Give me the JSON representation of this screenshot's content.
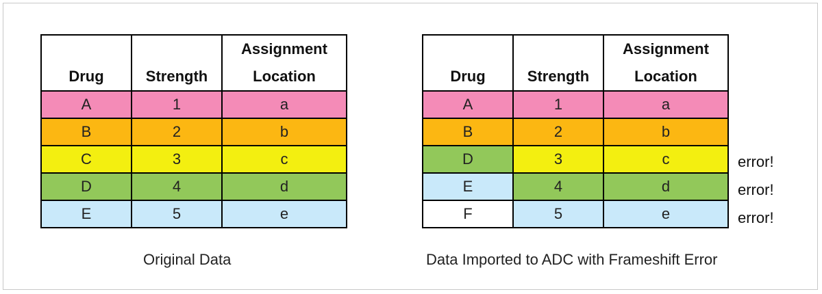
{
  "colors": {
    "A": "#f48bb7",
    "B": "#fcb712",
    "C": "#f3ef10",
    "D": "#92c85a",
    "E": "#c9e9fa",
    "F": "#ffffff"
  },
  "headers": {
    "drug": "Drug",
    "strength": "Strength",
    "location_line1": "Assignment",
    "location_line2": "Location"
  },
  "original": {
    "caption": "Original Data",
    "rows": [
      {
        "drug": "A",
        "strength": "1",
        "location": "a",
        "drug_color": "A",
        "rest_color": "A"
      },
      {
        "drug": "B",
        "strength": "2",
        "location": "b",
        "drug_color": "B",
        "rest_color": "B"
      },
      {
        "drug": "C",
        "strength": "3",
        "location": "c",
        "drug_color": "C",
        "rest_color": "C"
      },
      {
        "drug": "D",
        "strength": "4",
        "location": "d",
        "drug_color": "D",
        "rest_color": "D"
      },
      {
        "drug": "E",
        "strength": "5",
        "location": "e",
        "drug_color": "E",
        "rest_color": "E"
      }
    ]
  },
  "imported": {
    "caption": "Data Imported to ADC with Frameshift Error",
    "rows": [
      {
        "drug": "A",
        "strength": "1",
        "location": "a",
        "drug_color": "A",
        "rest_color": "A",
        "flag": ""
      },
      {
        "drug": "B",
        "strength": "2",
        "location": "b",
        "drug_color": "B",
        "rest_color": "B",
        "flag": ""
      },
      {
        "drug": "D",
        "strength": "3",
        "location": "c",
        "drug_color": "D",
        "rest_color": "C",
        "flag": "error!"
      },
      {
        "drug": "E",
        "strength": "4",
        "location": "d",
        "drug_color": "E",
        "rest_color": "D",
        "flag": "error!"
      },
      {
        "drug": "F",
        "strength": "5",
        "location": "e",
        "drug_color": "F",
        "rest_color": "E",
        "flag": "error!"
      }
    ]
  }
}
